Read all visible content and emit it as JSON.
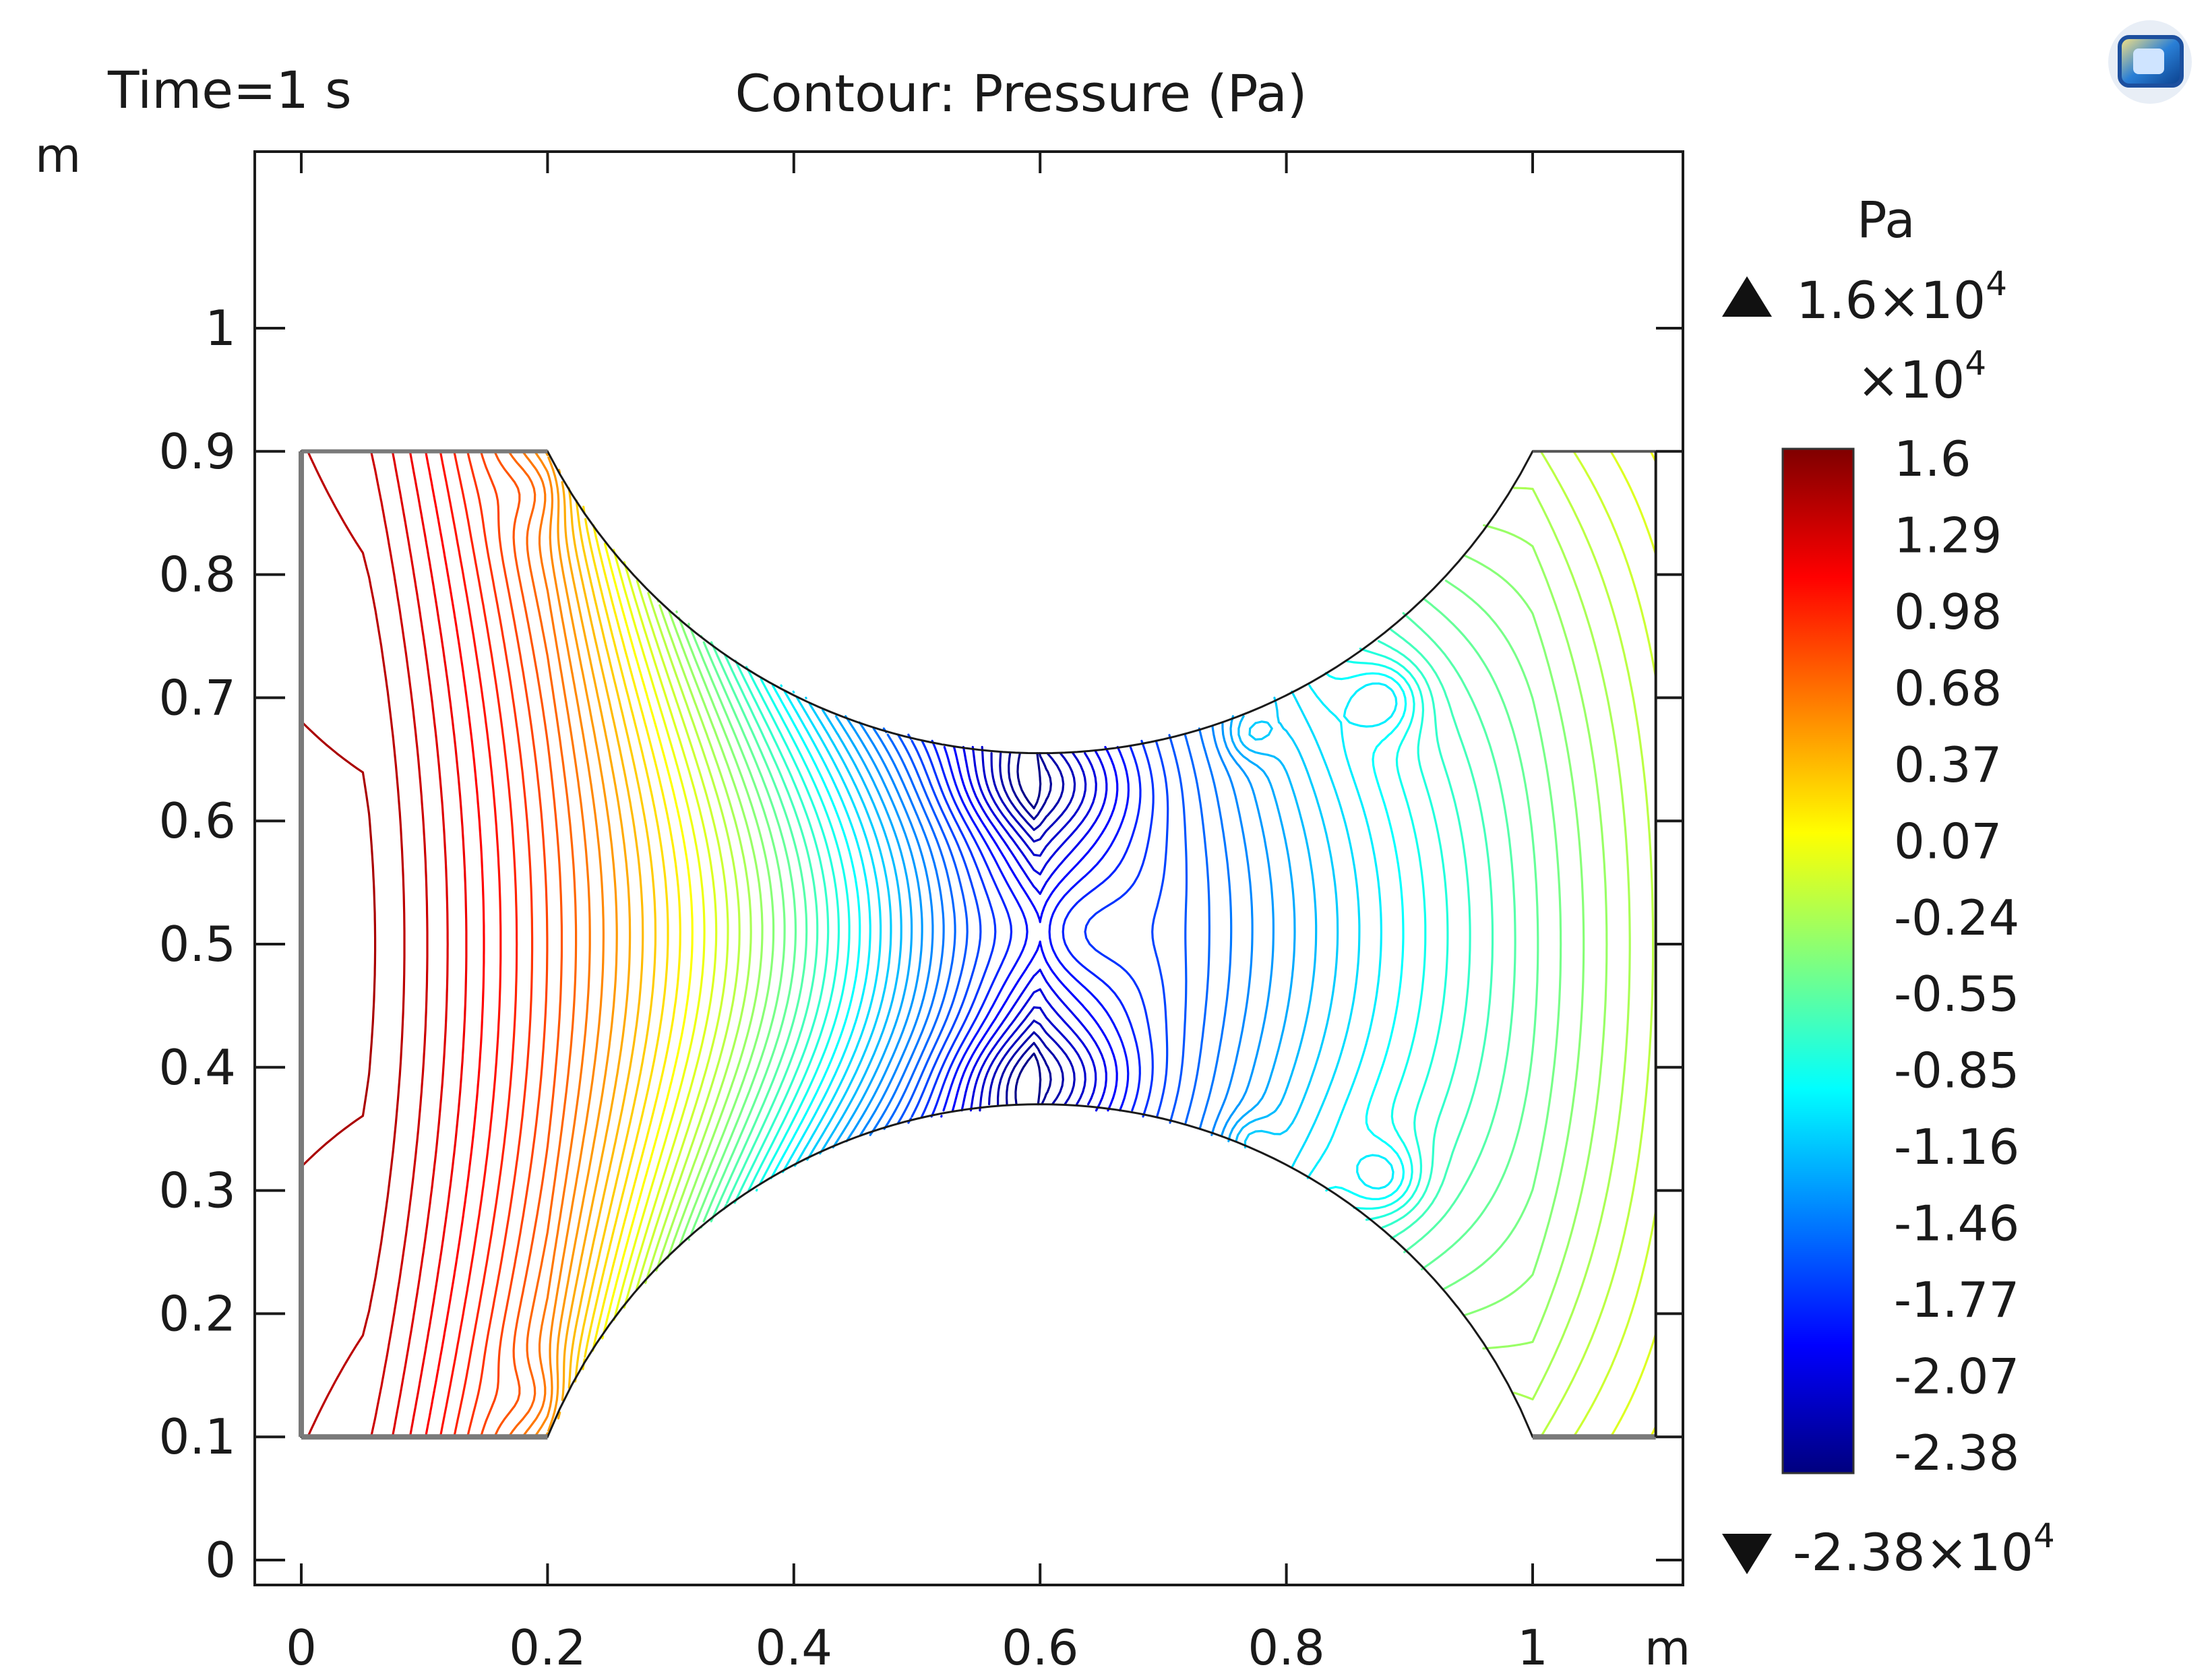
{
  "chart_data": {
    "type": "contour",
    "time_label": "Time=1 s",
    "title": "Contour: Pressure (Pa)",
    "xlabel_unit": "m",
    "ylabel_unit": "m",
    "xlim": [
      -0.04,
      1.1
    ],
    "ylim": [
      -0.02,
      1.15
    ],
    "x_ticks": [
      0,
      0.2,
      0.4,
      0.6,
      0.8,
      1
    ],
    "x_tick_labels": [
      "0",
      "0.2",
      "0.4",
      "0.6",
      "0.8",
      "1"
    ],
    "y_ticks": [
      0,
      0.1,
      0.2,
      0.3,
      0.4,
      0.5,
      0.6,
      0.7,
      0.8,
      0.9,
      1
    ],
    "y_tick_labels": [
      "0",
      "0.1",
      "0.2",
      "0.3",
      "0.4",
      "0.5",
      "0.6",
      "0.7",
      "0.8",
      "0.9",
      "1"
    ],
    "domain": {
      "x_range": [
        0,
        1.1
      ],
      "y_range": [
        0.1,
        0.9
      ],
      "throat_x": 0.6,
      "throat_top_y": 0.655,
      "throat_bottom_y": 0.37
    },
    "contour_levels": 60,
    "colorbar": {
      "unit": "Pa",
      "max_label": "1.6×10",
      "max_exp": "4",
      "min_label": "-2.38×10",
      "min_exp": "4",
      "scale_label": "×10",
      "scale_exp": "4",
      "tick_labels": [
        "1.6",
        "1.29",
        "0.98",
        "0.68",
        "0.37",
        "0.07",
        "-0.24",
        "-0.55",
        "-0.85",
        "-1.16",
        "-1.46",
        "-1.77",
        "-2.07",
        "-2.38"
      ],
      "range": [
        -2.38,
        1.6
      ],
      "colormap": [
        "#00007f",
        "#0000ff",
        "#007fff",
        "#00ffff",
        "#7fff7f",
        "#ffff00",
        "#ff7f00",
        "#ff0000",
        "#7f0000"
      ]
    }
  }
}
